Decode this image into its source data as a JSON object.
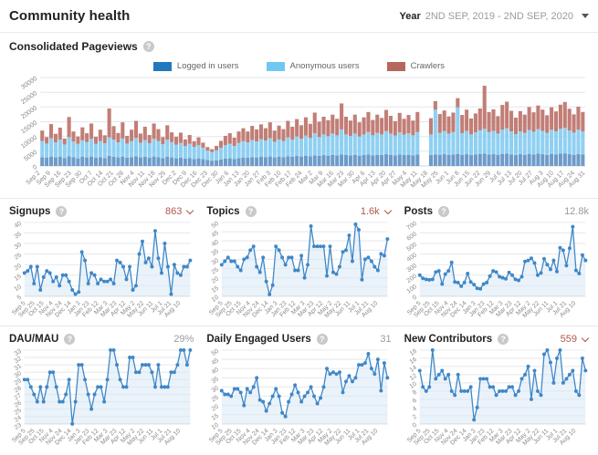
{
  "header": {
    "title": "Community health",
    "filter_label": "Year",
    "filter_value": "2ND SEP, 2019 - 2ND SEP, 2020"
  },
  "pageviews_title": "Consolidated Pageviews",
  "cards": [
    {
      "title": "Signups",
      "value": "863",
      "color": "#b0564c",
      "caret": true
    },
    {
      "title": "Topics",
      "value": "1.6k",
      "color": "#b0564c",
      "caret": true
    },
    {
      "title": "Posts",
      "value": "12.8k",
      "color": "#9b9b9b",
      "caret": false
    },
    {
      "title": "DAU/MAU",
      "value": "29%",
      "color": "#9b9b9b",
      "caret": false
    },
    {
      "title": "Daily Engaged Users",
      "value": "31",
      "color": "#9b9b9b",
      "caret": false
    },
    {
      "title": "New Contributors",
      "value": "559",
      "color": "#b0564c",
      "caret": true
    }
  ],
  "chart_data": [
    {
      "type": "stacked-bar",
      "title": "Consolidated Pageviews",
      "ylim": [
        0,
        30000
      ],
      "yticks": [
        0,
        5000,
        10000,
        15000,
        20000,
        25000,
        30000
      ],
      "grid": true,
      "legend_position": "top-center",
      "xlabels": [
        "Sep 2",
        "Sep 9",
        "Sep 16",
        "Sep 23",
        "Sep 30",
        "Oct 7",
        "Oct 14",
        "Oct 21",
        "Oct 28",
        "Nov 4",
        "Nov 11",
        "Nov 18",
        "Nov 25",
        "Dec 2",
        "Dec 9",
        "Dec 16",
        "Dec 23",
        "Dec 30",
        "Jan 6",
        "Jan 13",
        "Jan 20",
        "Jan 27",
        "Feb 3",
        "Feb 10",
        "Feb 17",
        "Feb 24",
        "Mar 2",
        "Mar 9",
        "Mar 16",
        "Mar 23",
        "Mar 30",
        "Apr 6",
        "Apr 13",
        "Apr 20",
        "Apr 27",
        "May 4",
        "May 11",
        "May 18",
        "May 25",
        "Jun 1",
        "Jun 8",
        "Jun 15",
        "Jun 22",
        "Jun 29",
        "Jul 6",
        "Jul 13",
        "Jul 20",
        "Jul 27",
        "Aug 3",
        "Aug 10",
        "Aug 17",
        "Aug 24",
        "Aug 31"
      ],
      "series": [
        {
          "name": "Logged in users",
          "legend_color": "#2178bd",
          "color": "#6d9bc9",
          "values": [
            3000,
            2800,
            3200,
            2900,
            3100,
            2700,
            3300,
            3000,
            2600,
            3100,
            2900,
            3200,
            2800,
            3000,
            2700,
            3400,
            3100,
            2900,
            3200,
            2800,
            3000,
            3300,
            2900,
            3100,
            2800,
            3200,
            3000,
            2700,
            3100,
            2900,
            2600,
            2800,
            2500,
            2700,
            2400,
            2600,
            2300,
            2000,
            1800,
            1900,
            2200,
            2500,
            2600,
            2400,
            2700,
            2900,
            2800,
            3000,
            2900,
            3100,
            3000,
            3200,
            2900,
            3100,
            3000,
            3300,
            3100,
            3400,
            3200,
            3500,
            3300,
            3600,
            3400,
            3700,
            3500,
            3800,
            3600,
            3900,
            3700,
            3600,
            3800,
            3500,
            3700,
            3900,
            3600,
            3800,
            3700,
            4000,
            3800,
            3600,
            3900,
            3700,
            3800,
            3600,
            3900,
            null,
            null,
            3700,
            3900,
            3800,
            4000,
            3800,
            3900,
            4100,
            3800,
            4000,
            3700,
            3900,
            4100,
            4200,
            3900,
            4000,
            3800,
            4100,
            4200,
            3900,
            3700,
            4000,
            3800,
            4100,
            3900,
            4200,
            4000,
            3800,
            4100,
            3900,
            4200,
            4300,
            4000,
            3800,
            4100,
            3900
          ]
        },
        {
          "name": "Anonymous users",
          "legend_color": "#6ec8f2",
          "color": "#8fd0f2",
          "values": [
            5500,
            4800,
            6200,
            5100,
            5800,
            4600,
            6500,
            5300,
            4900,
            5600,
            5200,
            6000,
            4700,
            5500,
            5000,
            6300,
            5800,
            5100,
            6100,
            4800,
            5400,
            6200,
            5000,
            5700,
            4900,
            6000,
            5500,
            4700,
            5800,
            5200,
            4600,
            5000,
            4300,
            4800,
            4100,
            4500,
            3900,
            3200,
            2900,
            3400,
            4000,
            4600,
            4900,
            4400,
            5100,
            5500,
            5200,
            5800,
            5400,
            6000,
            5600,
            6200,
            5300,
            5900,
            5500,
            6400,
            5800,
            6600,
            6000,
            6800,
            6200,
            7500,
            6400,
            7000,
            6600,
            7200,
            6800,
            8500,
            7000,
            6600,
            7200,
            6500,
            7000,
            7600,
            6800,
            7400,
            7000,
            7800,
            7200,
            6700,
            7500,
            6900,
            7300,
            6800,
            7600,
            null,
            null,
            7000,
            15200,
            7400,
            7800,
            7200,
            7600,
            15800,
            7300,
            7900,
            7000,
            7500,
            8000,
            8400,
            7600,
            7900,
            7200,
            8200,
            8600,
            7800,
            7100,
            7700,
            7400,
            8100,
            7700,
            8300,
            7900,
            7400,
            8200,
            7800,
            8400,
            8600,
            8000,
            7500,
            8200,
            7800
          ]
        },
        {
          "name": "Crawlers",
          "legend_color": "#b5675e",
          "color": "#c17e76",
          "values": [
            3500,
            2200,
            4800,
            2900,
            4100,
            2000,
            6800,
            3400,
            2500,
            4400,
            3000,
            5200,
            2400,
            3800,
            2700,
            9800,
            4600,
            3200,
            5500,
            2600,
            3900,
            5800,
            3100,
            4500,
            2800,
            5200,
            4000,
            2400,
            4900,
            3300,
            2700,
            3500,
            2200,
            3000,
            1900,
            2600,
            1700,
            1200,
            1000,
            1500,
            2300,
            3100,
            3600,
            2800,
            3900,
            4400,
            3700,
            4800,
            4100,
            5000,
            4200,
            5400,
            3800,
            4700,
            4000,
            5600,
            4400,
            5900,
            4600,
            6200,
            4800,
            7000,
            5200,
            6000,
            5400,
            6400,
            5600,
            8800,
            6000,
            5200,
            6400,
            4800,
            5800,
            6800,
            5200,
            6200,
            5600,
            7200,
            6000,
            4900,
            6600,
            5400,
            6200,
            5000,
            6800,
            null,
            null,
            5500,
            2900,
            6400,
            7000,
            5800,
            6600,
            3100,
            6200,
            7200,
            5400,
            6400,
            7400,
            14600,
            6800,
            7300,
            5900,
            8400,
            9000,
            7000,
            5600,
            6900,
            6200,
            7800,
            6600,
            8000,
            7200,
            6000,
            7600,
            6800,
            8200,
            8800,
            7400,
            6200,
            7800,
            6600
          ]
        }
      ]
    },
    {
      "type": "line",
      "title": "Signups",
      "ylim": [
        5,
        40
      ],
      "yticks": [
        5,
        10,
        15,
        20,
        25,
        30,
        35,
        40
      ],
      "color": "#3f87c7",
      "fill": "#dce9f7",
      "xlabels": [
        "Sep 5",
        "Sep 25",
        "Oct 15",
        "Nov 4",
        "Nov 24",
        "Dec 14",
        "Jan 3",
        "Jan 23",
        "Feb 12",
        "Mar 3",
        "Mar 23",
        "Apr 12",
        "May 2",
        "May 22",
        "Jun 11",
        "Jul 1",
        "Jul 21",
        "Aug 10"
      ],
      "values": [
        16,
        17,
        19,
        11,
        19,
        8,
        14,
        17,
        16,
        12,
        14,
        10,
        15,
        15,
        12,
        8,
        6,
        7,
        26,
        22,
        11,
        16,
        15,
        11,
        13,
        12,
        12,
        13,
        11,
        22,
        21,
        19,
        13,
        19,
        8,
        10,
        25,
        31,
        21,
        23,
        19,
        36,
        23,
        16,
        30,
        19,
        6,
        20,
        16,
        15,
        19,
        19,
        22
      ]
    },
    {
      "type": "line",
      "title": "Topics",
      "ylim": [
        10,
        50
      ],
      "yticks": [
        10,
        15,
        20,
        25,
        30,
        35,
        40,
        45,
        50
      ],
      "color": "#3f87c7",
      "fill": "#dce9f7",
      "xlabels": [
        "Sep 5",
        "Sep 25",
        "Oct 15",
        "Nov 4",
        "Nov 24",
        "Dec 14",
        "Jan 3",
        "Jan 23",
        "Feb 12",
        "Mar 3",
        "Mar 23",
        "Apr 12",
        "May 2",
        "May 22",
        "Jun 11",
        "Jul 1",
        "Jul 21",
        "Aug 10"
      ],
      "values": [
        27,
        29,
        31,
        29,
        29,
        26,
        24,
        30,
        31,
        35,
        37,
        26,
        23,
        31,
        18,
        11,
        16,
        37,
        35,
        31,
        27,
        31,
        31,
        24,
        24,
        32,
        20,
        27,
        48,
        37,
        37,
        37,
        37,
        21,
        37,
        23,
        22,
        26,
        34,
        35,
        43,
        29,
        49,
        46,
        19,
        30,
        31,
        29,
        26,
        24,
        33,
        32,
        41
      ]
    },
    {
      "type": "line",
      "title": "Posts",
      "ylim": [
        0,
        700
      ],
      "yticks": [
        0,
        100,
        200,
        300,
        400,
        500,
        600,
        700
      ],
      "color": "#3f87c7",
      "fill": "#dce9f7",
      "xlabels": [
        "Sep 5",
        "Sep 25",
        "Oct 15",
        "Nov 4",
        "Nov 24",
        "Dec 14",
        "Jan 3",
        "Jan 23",
        "Feb 12",
        "Mar 3",
        "Mar 23",
        "Apr 12",
        "May 2",
        "May 22",
        "Jun 11",
        "Jul 1",
        "Jul 21",
        "Aug 10"
      ],
      "values": [
        200,
        170,
        160,
        155,
        160,
        230,
        240,
        115,
        210,
        240,
        320,
        135,
        130,
        95,
        130,
        215,
        135,
        110,
        75,
        70,
        115,
        130,
        190,
        240,
        230,
        185,
        175,
        165,
        225,
        200,
        160,
        150,
        185,
        330,
        340,
        360,
        315,
        200,
        220,
        355,
        300,
        255,
        340,
        235,
        460,
        435,
        290,
        455,
        660,
        245,
        215,
        390,
        340
      ]
    },
    {
      "type": "line",
      "title": "DAU/MAU",
      "ylim": [
        23,
        33
      ],
      "yticks": [
        23,
        24,
        25,
        26,
        27,
        28,
        29,
        30,
        31,
        32,
        33
      ],
      "color": "#3f87c7",
      "fill": "#dce9f7",
      "xlabels": [
        "Sep 5",
        "Sep 25",
        "Oct 15",
        "Nov 4",
        "Nov 24",
        "Dec 14",
        "Jan 3",
        "Jan 23",
        "Feb 12",
        "Mar 3",
        "Mar 23",
        "Apr 12",
        "May 2",
        "May 22",
        "Jun 11",
        "Jul 1",
        "Jul 21",
        "Aug 10"
      ],
      "values": [
        29,
        29,
        28,
        27,
        26,
        28,
        26,
        28,
        30,
        30,
        28,
        26,
        26,
        27,
        29,
        23,
        26,
        31,
        31,
        29,
        27,
        25,
        27,
        28,
        28,
        26,
        29,
        33,
        33,
        31,
        29,
        28,
        28,
        32,
        32,
        30,
        30,
        31,
        31,
        31,
        30,
        28,
        31,
        28,
        28,
        28,
        30,
        30,
        31,
        33,
        33,
        31,
        33
      ]
    },
    {
      "type": "line",
      "title": "Daily Engaged Users",
      "ylim": [
        10,
        50
      ],
      "yticks": [
        10,
        15,
        20,
        25,
        30,
        35,
        40,
        45,
        50
      ],
      "color": "#3f87c7",
      "fill": "#dce9f7",
      "xlabels": [
        "Sep 5",
        "Sep 25",
        "Oct 15",
        "Nov 4",
        "Nov 24",
        "Dec 14",
        "Jan 3",
        "Jan 23",
        "Feb 12",
        "Mar 3",
        "Mar 23",
        "Apr 12",
        "May 2",
        "May 22",
        "Jun 11",
        "Jul 1",
        "Jul 21",
        "Aug 10"
      ],
      "values": [
        28,
        26,
        26,
        25,
        29,
        29,
        27,
        20,
        29,
        27,
        30,
        35,
        23,
        22,
        17,
        21,
        25,
        29,
        25,
        16,
        14,
        22,
        26,
        31,
        27,
        22,
        25,
        27,
        30,
        25,
        21,
        24,
        30,
        40,
        37,
        38,
        37,
        38,
        27,
        33,
        36,
        33,
        35,
        42,
        42,
        43,
        48,
        40,
        37,
        45,
        28,
        43,
        35
      ]
    },
    {
      "type": "line",
      "title": "New Contributors",
      "ylim": [
        0,
        18
      ],
      "yticks": [
        0,
        2,
        4,
        6,
        8,
        10,
        12,
        14,
        16,
        18
      ],
      "color": "#3f87c7",
      "fill": "#dce9f7",
      "xlabels": [
        "Sep 5",
        "Sep 25",
        "Oct 15",
        "Nov 4",
        "Nov 24",
        "Dec 14",
        "Jan 3",
        "Jan 23",
        "Feb 12",
        "Mar 3",
        "Mar 23",
        "Apr 12",
        "May 2",
        "May 22",
        "Jun 11",
        "Jul 1",
        "Jul 21",
        "Aug 10"
      ],
      "values": [
        13,
        9,
        8,
        9,
        18,
        11,
        12,
        13,
        11,
        12,
        8,
        7,
        12,
        8,
        8,
        8,
        9,
        1,
        4,
        11,
        11,
        11,
        9,
        9,
        7,
        8,
        8,
        8,
        9,
        9,
        7,
        8,
        11,
        12,
        14,
        6,
        13,
        8,
        7,
        17,
        18,
        15,
        10,
        16,
        18,
        10,
        11,
        12,
        13,
        8,
        7,
        16,
        13
      ]
    }
  ]
}
